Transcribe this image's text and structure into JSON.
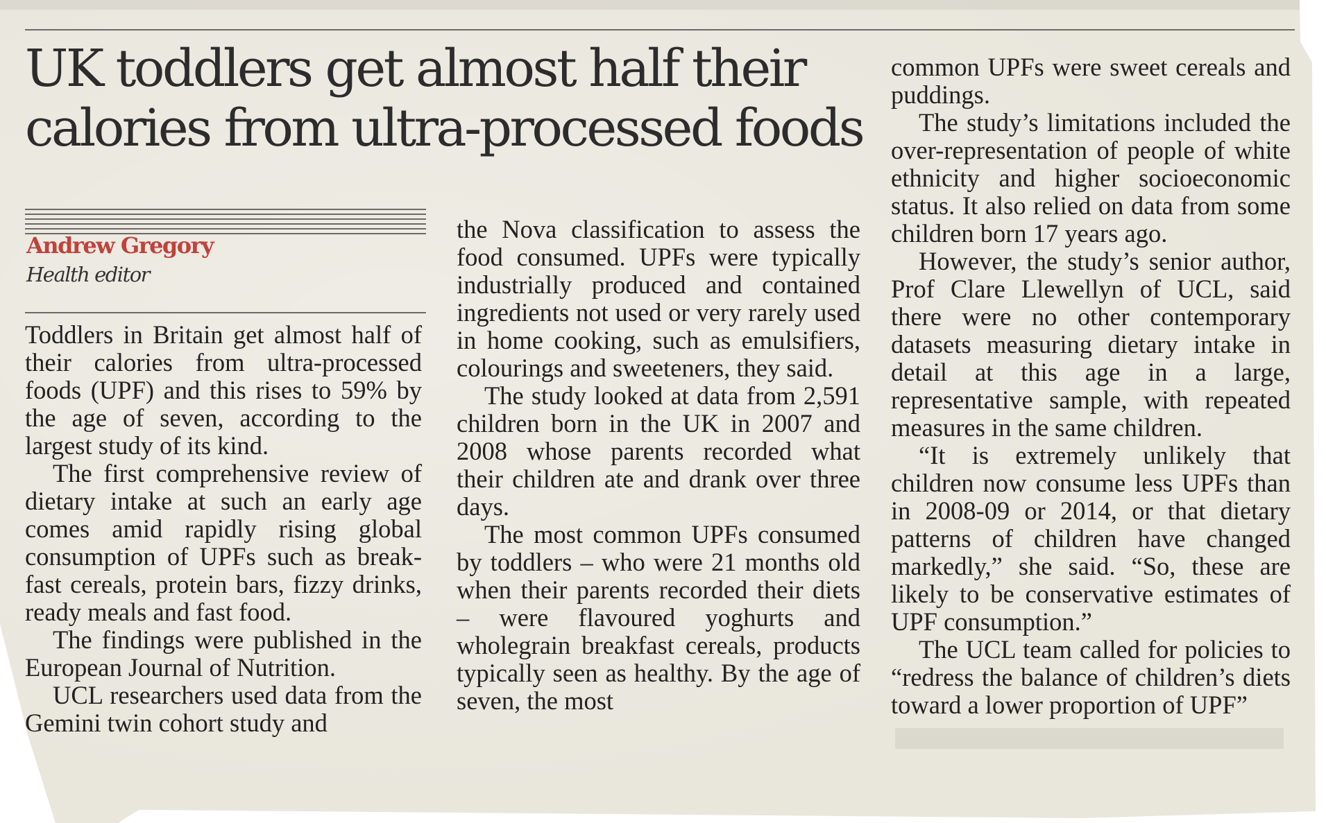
{
  "headline": "UK toddlers get almost half their calories from ultra-processed foods",
  "byline": {
    "name": "Andrew Gregory",
    "role": "Health editor"
  },
  "body": {
    "col1": [
      "Toddlers in Britain get almost half of their calories from ultra-processed foods (UPF) and this rises to 59% by the age of seven, according to the largest study of its kind.",
      "The first comprehensive review of dietary intake at such an early age comes amid rapidly rising global consumption of UPFs such as break­fast cereals, protein bars, fizzy drinks, ready meals and fast food.",
      "The findings were published in the European Journal of Nutrition.",
      "UCL researchers used data from the Gemini twin cohort study and"
    ],
    "col2": [
      "the Nova classification to assess the food consumed. UPFs were typically industrially produced and contained ingredients not used or very rarely used in home cooking, such as emulsifiers, colourings and sweeten­ers, they said.",
      "The study looked at data from 2,591 children born in the UK in 2007 and 2008 whose parents recorded what their children ate and drank over three days.",
      "The most common UPFs consumed by toddlers – who were 21 months old when their parents recorded their diets – were flavoured yoghurts and wholegrain breakfast cereals, products typically seen as healthy. By the age of seven, the most"
    ],
    "col3": [
      "common UPFs were sweet cereals and puddings.",
      "The study’s limitations included the over-representation of people of white ethnicity and higher socio­economic status. It also relied on data from some children born 17 years ago.",
      "However, the study’s senior author, Prof Clare Llewellyn of UCL, said there were no other contem­porary datasets measuring dietary intake in detail at this age in a large, representative sample, with repeated measures in the same children.",
      "“It is extremely unlikely that children now consume less UPFs than in 2008-09 or 2014, or that dietary patterns of children have changed markedly,” she said. “So, these are likely to be conservative estimates of UPF consumption.”",
      "The UCL team called for policies to “redress the balance of children’s diets toward a lower proportion of UPF”"
    ]
  },
  "colors": {
    "paper": "#e9e6dc",
    "ink": "#222222",
    "byline_accent": "#c0423c"
  }
}
